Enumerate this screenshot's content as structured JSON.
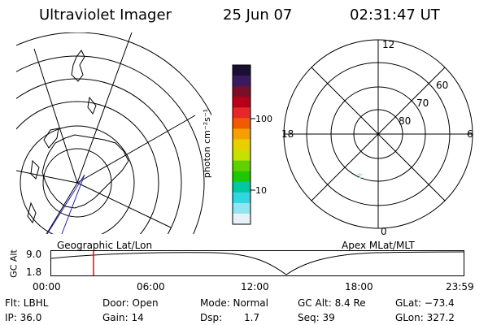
{
  "header": {
    "title": "Ultraviolet Imager",
    "date": "25 Jun 07",
    "time": "02:31:47 UT"
  },
  "left_panel": {
    "caption": "Geographic Lat/Lon"
  },
  "right_panel": {
    "caption": "Apex  MLat/MLT",
    "mlt_labels": {
      "top": "12",
      "left": "18",
      "right": "6",
      "bottom": "0"
    },
    "lat_labels": [
      "60",
      "70",
      "80"
    ]
  },
  "colorbar": {
    "unit_label": "photon cm⁻²s⁻¹",
    "ticks": [
      "100",
      "10"
    ],
    "colors": [
      "#1a0f33",
      "#3a1a5e",
      "#7a1028",
      "#b8001a",
      "#e82828",
      "#f05a00",
      "#f5a000",
      "#e8d000",
      "#c8e000",
      "#5fd000",
      "#1ec800",
      "#00c8a0",
      "#30d6e0",
      "#8fe6f2",
      "#e6f2f7"
    ]
  },
  "altitude_plot": {
    "ylabel": "GC Alt",
    "ymax_label": "9.0",
    "ymin_label": "1.8",
    "x_ticks": [
      "00:00",
      "06:00",
      "12:00",
      "18:00",
      "23:59"
    ]
  },
  "status": {
    "row1": {
      "filter": "Flt: LBHL",
      "door": "Door: Open",
      "mode": "Mode: Normal",
      "gc_alt": "GC Alt: 8.4 Re",
      "glat": "GLat: −73.4"
    },
    "row2": {
      "ip": "IP: 36.0",
      "gain": "Gain: 14",
      "dsp_label": "Dsp:",
      "dsp_value": "1.7",
      "seq": "Seq: 39",
      "glon": "GLon: 327.2"
    }
  }
}
